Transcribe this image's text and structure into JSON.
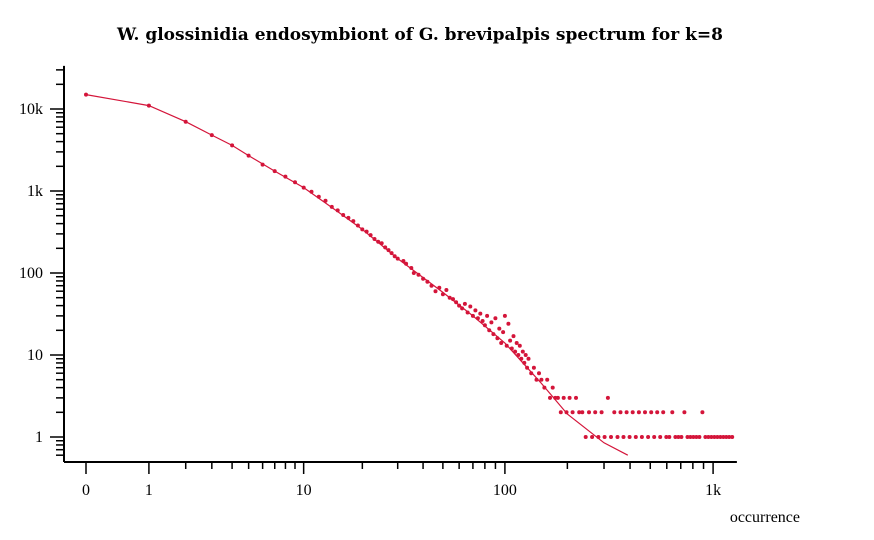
{
  "chart_data": {
    "type": "scatter",
    "title": "W. glossinidia endosymbiont of G. brevipalpis spectrum for k=8",
    "xlabel": "occurrence",
    "ylabel": "",
    "x_scale": "log1p",
    "y_scale": "log",
    "xlim": [
      0,
      1300
    ],
    "ylim": [
      0.6,
      30000
    ],
    "x_ticks": [
      {
        "value": 0,
        "label": "0"
      },
      {
        "value": 1,
        "label": "1"
      },
      {
        "value": 10,
        "label": "10"
      },
      {
        "value": 100,
        "label": "100"
      },
      {
        "value": 1000,
        "label": "1k"
      }
    ],
    "y_ticks": [
      {
        "value": 1,
        "label": "1"
      },
      {
        "value": 10,
        "label": "10"
      },
      {
        "value": 100,
        "label": "100"
      },
      {
        "value": 1000,
        "label": "1k"
      },
      {
        "value": 10000,
        "label": "10k"
      }
    ],
    "color": "#d4153a",
    "grid": false,
    "series": [
      {
        "kind": "points",
        "points": [
          [
            0,
            15000
          ],
          [
            1,
            11000
          ],
          [
            2,
            7000
          ],
          [
            3,
            4800
          ],
          [
            4,
            3600
          ],
          [
            5,
            2700
          ],
          [
            6,
            2100
          ],
          [
            7,
            1750
          ],
          [
            8,
            1500
          ],
          [
            9,
            1280
          ],
          [
            10,
            1100
          ],
          [
            11,
            980
          ],
          [
            12,
            850
          ],
          [
            13,
            760
          ],
          [
            14,
            640
          ],
          [
            15,
            580
          ],
          [
            16,
            510
          ],
          [
            17,
            470
          ],
          [
            18,
            430
          ],
          [
            19,
            380
          ],
          [
            20,
            340
          ],
          [
            21,
            320
          ],
          [
            22,
            290
          ],
          [
            23,
            260
          ],
          [
            24,
            240
          ],
          [
            25,
            230
          ],
          [
            26,
            205
          ],
          [
            27,
            190
          ],
          [
            28,
            175
          ],
          [
            29,
            160
          ],
          [
            30,
            150
          ],
          [
            32,
            140
          ],
          [
            33,
            130
          ],
          [
            35,
            115
          ],
          [
            36,
            100
          ],
          [
            38,
            95
          ],
          [
            40,
            85
          ],
          [
            42,
            78
          ],
          [
            44,
            70
          ],
          [
            46,
            60
          ],
          [
            48,
            66
          ],
          [
            50,
            55
          ],
          [
            52,
            62
          ],
          [
            54,
            50
          ],
          [
            56,
            48
          ],
          [
            58,
            44
          ],
          [
            60,
            40
          ],
          [
            62,
            37
          ],
          [
            64,
            42
          ],
          [
            66,
            33
          ],
          [
            68,
            39
          ],
          [
            70,
            30
          ],
          [
            72,
            35
          ],
          [
            74,
            28
          ],
          [
            76,
            32
          ],
          [
            78,
            26
          ],
          [
            80,
            23
          ],
          [
            82,
            30
          ],
          [
            84,
            20
          ],
          [
            86,
            25
          ],
          [
            88,
            18
          ],
          [
            90,
            28
          ],
          [
            92,
            16
          ],
          [
            94,
            21
          ],
          [
            96,
            14
          ],
          [
            98,
            19
          ],
          [
            100,
            30
          ],
          [
            102,
            13
          ],
          [
            104,
            24
          ],
          [
            106,
            15
          ],
          [
            108,
            12
          ],
          [
            110,
            17
          ],
          [
            112,
            11
          ],
          [
            114,
            14
          ],
          [
            116,
            10
          ],
          [
            118,
            13
          ],
          [
            120,
            9
          ],
          [
            122,
            11
          ],
          [
            124,
            8
          ],
          [
            126,
            10
          ],
          [
            128,
            7
          ],
          [
            130,
            9
          ],
          [
            134,
            6
          ],
          [
            138,
            7
          ],
          [
            142,
            5
          ],
          [
            146,
            6
          ],
          [
            150,
            5
          ],
          [
            155,
            4
          ],
          [
            160,
            5
          ],
          [
            165,
            3
          ],
          [
            170,
            4
          ],
          [
            175,
            3
          ],
          [
            180,
            3
          ],
          [
            186,
            2
          ],
          [
            192,
            3
          ],
          [
            198,
            2
          ],
          [
            205,
            3
          ],
          [
            212,
            2
          ],
          [
            220,
            3
          ],
          [
            228,
            2
          ],
          [
            236,
            2
          ],
          [
            245,
            1
          ],
          [
            254,
            2
          ],
          [
            263,
            1
          ],
          [
            272,
            2
          ],
          [
            282,
            1
          ],
          [
            292,
            2
          ],
          [
            302,
            1
          ],
          [
            313,
            3
          ],
          [
            324,
            1
          ],
          [
            336,
            2
          ],
          [
            348,
            1
          ],
          [
            360,
            2
          ],
          [
            372,
            1
          ],
          [
            385,
            2
          ],
          [
            398,
            1
          ],
          [
            412,
            2
          ],
          [
            426,
            1
          ],
          [
            441,
            2
          ],
          [
            456,
            1
          ],
          [
            472,
            2
          ],
          [
            488,
            1
          ],
          [
            505,
            2
          ],
          [
            522,
            1
          ],
          [
            540,
            2
          ],
          [
            558,
            1
          ],
          [
            577,
            2
          ],
          [
            597,
            1
          ],
          [
            617,
            1
          ],
          [
            638,
            2
          ],
          [
            660,
            1
          ],
          [
            682,
            1
          ],
          [
            705,
            1
          ],
          [
            729,
            2
          ],
          [
            754,
            1
          ],
          [
            779,
            1
          ],
          [
            805,
            1
          ],
          [
            832,
            1
          ],
          [
            860,
            1
          ],
          [
            889,
            2
          ],
          [
            919,
            1
          ],
          [
            950,
            1
          ],
          [
            982,
            1
          ],
          [
            1015,
            1
          ],
          [
            1049,
            1
          ],
          [
            1084,
            1
          ],
          [
            1120,
            1
          ],
          [
            1157,
            1
          ],
          [
            1195,
            1
          ],
          [
            1235,
            1
          ]
        ]
      },
      {
        "kind": "line",
        "points": [
          [
            0,
            15000
          ],
          [
            1,
            11000
          ],
          [
            2,
            7000
          ],
          [
            3,
            4800
          ],
          [
            4,
            3600
          ],
          [
            5,
            2700
          ],
          [
            7,
            1750
          ],
          [
            10,
            1100
          ],
          [
            15,
            560
          ],
          [
            20,
            340
          ],
          [
            30,
            150
          ],
          [
            50,
            58
          ],
          [
            70,
            30
          ],
          [
            100,
            14
          ],
          [
            150,
            4.5
          ],
          [
            200,
            1.9
          ],
          [
            300,
            0.85
          ],
          [
            390,
            0.6
          ]
        ]
      }
    ]
  }
}
